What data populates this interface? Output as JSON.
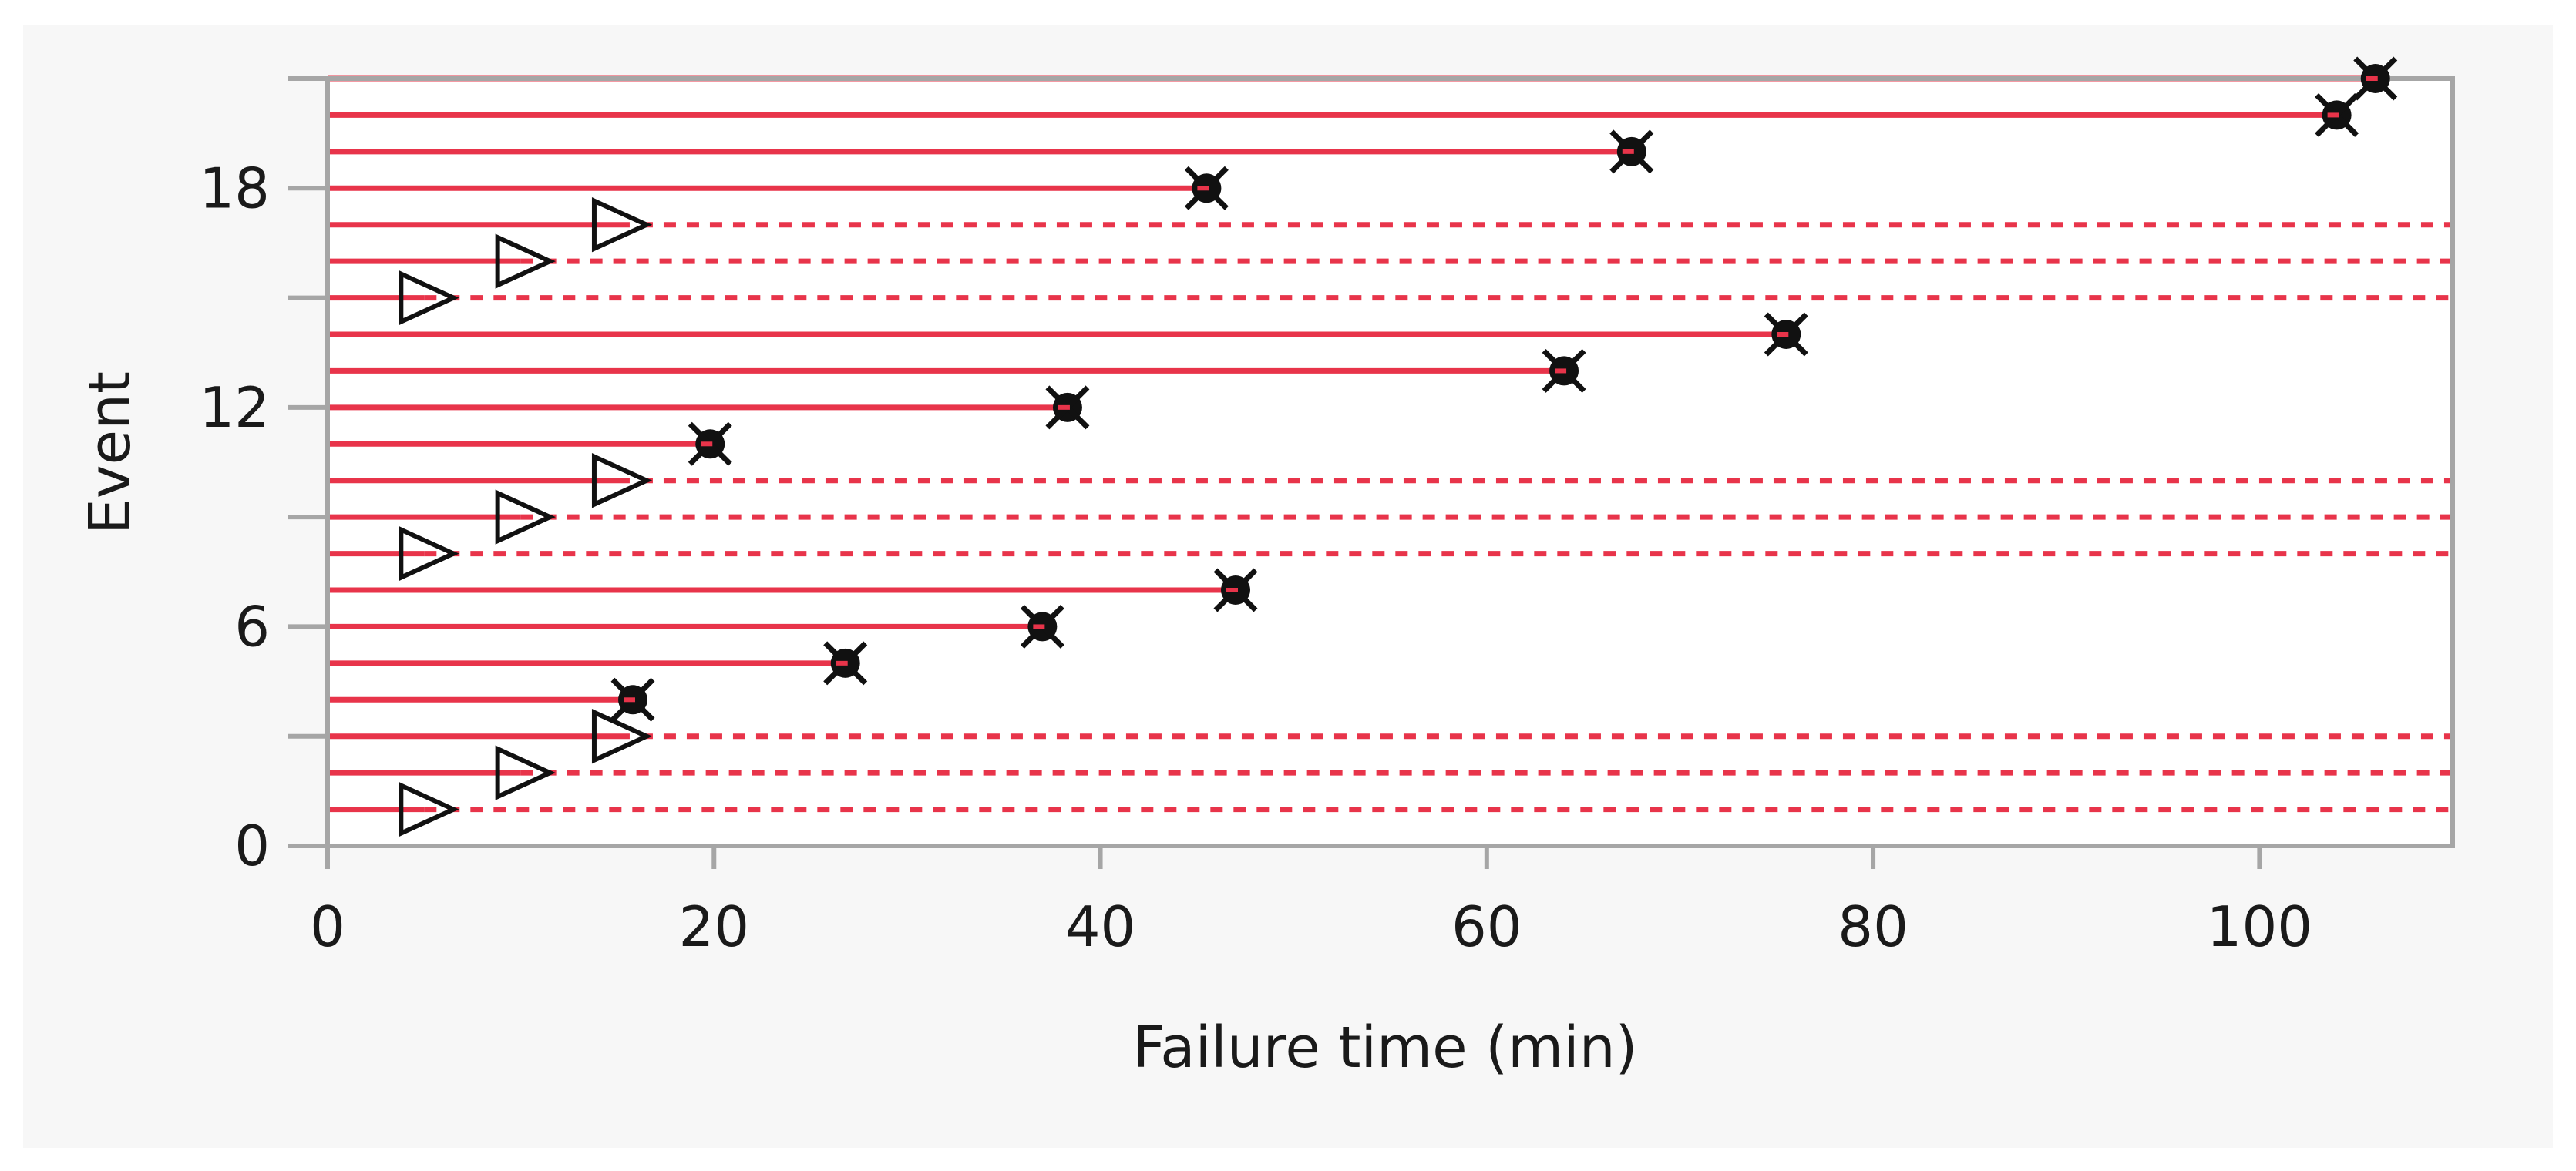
{
  "chart_data": {
    "type": "scatter",
    "subtype": "event-timeline",
    "title": "",
    "xlabel": "Failure time (min)",
    "ylabel": "Event",
    "xlim": [
      0,
      110
    ],
    "ylim": [
      0,
      21
    ],
    "x_ticks": [
      0,
      20,
      40,
      60,
      80,
      100
    ],
    "y_ticks_labeled": [
      0,
      6,
      12,
      18
    ],
    "y_ticks_minor": [
      3,
      9,
      15,
      21
    ],
    "grid": false,
    "legend": "none",
    "colors": {
      "line": "#e8344a",
      "marker": "#111111",
      "panel_background": "#f7f7f7",
      "plot_background": "#ffffff",
      "frame": "#a6a6a6"
    },
    "events": [
      {
        "event": 1,
        "time": 5,
        "status": "censored"
      },
      {
        "event": 2,
        "time": 10,
        "status": "censored"
      },
      {
        "event": 3,
        "time": 15,
        "status": "censored"
      },
      {
        "event": 4,
        "time": 15.8,
        "status": "failure"
      },
      {
        "event": 5,
        "time": 26.8,
        "status": "failure"
      },
      {
        "event": 6,
        "time": 37,
        "status": "failure"
      },
      {
        "event": 7,
        "time": 47,
        "status": "failure"
      },
      {
        "event": 8,
        "time": 5,
        "status": "censored"
      },
      {
        "event": 9,
        "time": 10,
        "status": "censored"
      },
      {
        "event": 10,
        "time": 15,
        "status": "censored"
      },
      {
        "event": 11,
        "time": 19.8,
        "status": "failure"
      },
      {
        "event": 12,
        "time": 38.3,
        "status": "failure"
      },
      {
        "event": 13,
        "time": 64,
        "status": "failure"
      },
      {
        "event": 14,
        "time": 75.5,
        "status": "failure"
      },
      {
        "event": 15,
        "time": 5,
        "status": "censored"
      },
      {
        "event": 16,
        "time": 10,
        "status": "censored"
      },
      {
        "event": 17,
        "time": 15,
        "status": "censored"
      },
      {
        "event": 18,
        "time": 45.5,
        "status": "failure"
      },
      {
        "event": 19,
        "time": 67.5,
        "status": "failure"
      },
      {
        "event": 20,
        "time": 104,
        "status": "failure"
      },
      {
        "event": 21,
        "time": 106,
        "status": "failure"
      }
    ]
  }
}
